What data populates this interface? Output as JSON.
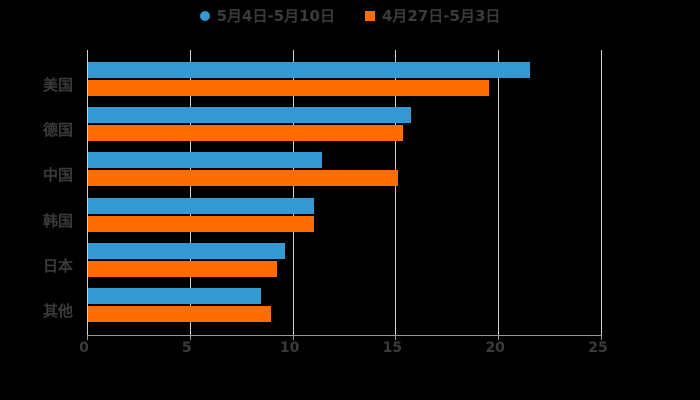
{
  "legend": {
    "position": "top",
    "items": [
      {
        "label": "5月4日-5月10日",
        "marker": "circle",
        "color": "#3498d1"
      },
      {
        "label": "4月27日-5月3日",
        "marker": "square",
        "color": "#ff6c00"
      }
    ]
  },
  "chart_data": {
    "type": "bar",
    "orientation": "horizontal",
    "title": "",
    "xlabel": "",
    "ylabel": "",
    "categories": [
      "美国",
      "德国",
      "中国",
      "韩国",
      "日本",
      "其他"
    ],
    "series": [
      {
        "name": "5月4日-5月10日",
        "color": "#3498d1",
        "values": [
          21.5,
          15.7,
          11.4,
          11.0,
          9.6,
          8.4
        ]
      },
      {
        "name": "4月27日-5月3日",
        "color": "#ff6c00",
        "values": [
          19.5,
          15.3,
          15.1,
          11.0,
          9.2,
          8.9
        ]
      }
    ],
    "xlim": [
      0,
      25
    ],
    "xticks": [
      0,
      5,
      10,
      15,
      20,
      25
    ],
    "grid": "vertical-gridlines",
    "legend_position": "top-center"
  },
  "colors": {
    "background": "#000000",
    "gridline": "#d2d2d2",
    "axis": "#979797",
    "text": "#3b3b3b"
  }
}
